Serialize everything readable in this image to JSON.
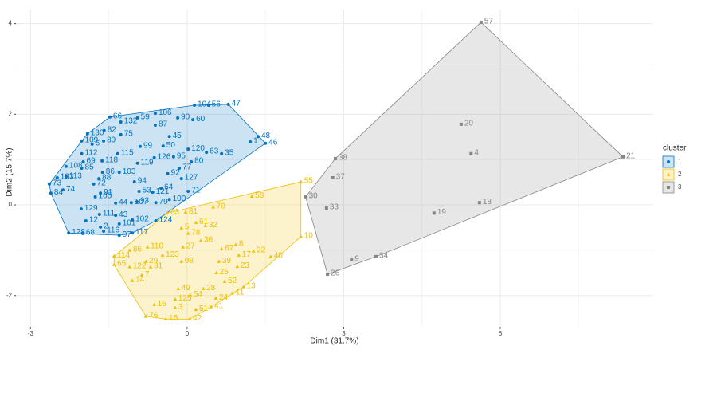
{
  "chart_data": {
    "type": "cluster-scatter",
    "x_label": "Dim1 (31.7%)",
    "y_label": "Dim2 (15.7%)",
    "xlim": [
      -3.28,
      8.93
    ],
    "ylim": [
      -2.69,
      4.31
    ],
    "xticks": [
      -3,
      0,
      3,
      6
    ],
    "yticks": [
      -2,
      0,
      2,
      4
    ],
    "x_minor_ticks": [
      -1.5,
      1.5,
      4.5,
      7.5
    ],
    "y_minor_ticks": [
      -1,
      1,
      3
    ],
    "grid": true,
    "legend_title": "cluster",
    "legend_position": "right",
    "series": [
      {
        "name": "1",
        "color": "#0073C2",
        "shape": "circle",
        "labels": [
          "104",
          "56",
          "47",
          "106",
          "59",
          "66",
          "90",
          "60",
          "87",
          "132",
          "82",
          "130",
          "75",
          "89",
          "6",
          "109",
          "48",
          "1",
          "46",
          "45",
          "99",
          "50",
          "115",
          "120",
          "63",
          "35",
          "112",
          "95",
          "126",
          "119",
          "118",
          "69",
          "108",
          "85",
          "80",
          "77",
          "86",
          "103",
          "113",
          "92",
          "127",
          "88",
          "94",
          "72",
          "133",
          "73",
          "74",
          "84",
          "64",
          "71",
          "91",
          "53",
          "121",
          "105",
          "100",
          "79",
          "44",
          "107",
          "93",
          "129",
          "111",
          "43",
          "12",
          "116",
          "128",
          "68",
          "2",
          "101",
          "102",
          "97",
          "117",
          "124"
        ],
        "x": [
          0.14,
          0.41,
          0.79,
          -0.61,
          -0.95,
          -1.48,
          -0.18,
          0.11,
          -0.61,
          -1.27,
          -1.59,
          -1.91,
          -1.27,
          -1.6,
          -1.82,
          -2.02,
          1.36,
          1.21,
          1.5,
          -0.34,
          -0.9,
          -0.46,
          -1.33,
          0.02,
          0.37,
          0.66,
          -2.02,
          -0.26,
          -0.63,
          -0.95,
          -1.63,
          -1.99,
          -2.32,
          -2.02,
          0.08,
          -0.15,
          -1.62,
          -1.3,
          -2.32,
          -0.37,
          -0.11,
          -1.69,
          -1.01,
          -1.79,
          -2.49,
          -2.64,
          -2.38,
          -2.61,
          -0.5,
          0.02,
          -1.66,
          -0.92,
          -0.66,
          -1.76,
          -0.34,
          -0.6,
          -1.37,
          -1.07,
          -0.96,
          -2.03,
          -1.68,
          -1.37,
          -1.94,
          -1.6,
          -2.27,
          -2.0,
          -1.66,
          -1.3,
          -1.05,
          -1.3,
          -1.05,
          -0.6
        ],
        "values": [
          2.2,
          2.2,
          2.22,
          2.02,
          1.92,
          1.94,
          1.92,
          1.88,
          1.76,
          1.83,
          1.64,
          1.57,
          1.55,
          1.41,
          1.34,
          1.41,
          1.51,
          1.39,
          1.36,
          1.51,
          1.29,
          1.3,
          1.13,
          1.23,
          1.16,
          1.13,
          1.13,
          1.06,
          1.04,
          0.92,
          0.97,
          0.95,
          0.85,
          0.81,
          0.95,
          0.81,
          0.72,
          0.72,
          0.62,
          0.69,
          0.58,
          0.58,
          0.51,
          0.46,
          0.6,
          0.46,
          0.33,
          0.26,
          0.37,
          0.3,
          0.26,
          0.3,
          0.28,
          0.18,
          0.12,
          0.05,
          0.04,
          0.05,
          0.07,
          -0.09,
          -0.21,
          -0.23,
          -0.35,
          -0.58,
          -0.62,
          -0.63,
          -0.49,
          -0.42,
          -0.33,
          -0.67,
          -0.62,
          -0.35
        ]
      },
      {
        "name": "2",
        "color": "#EFC000",
        "shape": "triangle",
        "labels": [
          "55",
          "58",
          "70",
          "81",
          "63",
          "61",
          "32",
          "5",
          "78",
          "36",
          "10",
          "8",
          "67",
          "17",
          "22",
          "40",
          "27",
          "110",
          "86",
          "114",
          "123",
          "29",
          "98",
          "39",
          "23",
          "65",
          "122",
          "31",
          "25",
          "7",
          "14",
          "52",
          "13",
          "49",
          "28",
          "11",
          "54",
          "125",
          "24",
          "3",
          "51",
          "41",
          "16",
          "76",
          "15",
          "42"
        ],
        "x": [
          2.18,
          1.24,
          0.5,
          -0.03,
          -0.38,
          0.17,
          0.35,
          -0.11,
          0.02,
          0.26,
          2.18,
          0.93,
          0.66,
          0.99,
          1.27,
          1.6,
          -0.08,
          -0.76,
          -1.1,
          -1.4,
          -0.47,
          -0.79,
          -0.11,
          0.61,
          0.96,
          -1.4,
          -1.1,
          -0.7,
          0.56,
          -0.87,
          -1.05,
          0.72,
          1.08,
          -0.17,
          0.31,
          0.87,
          0.06,
          -0.23,
          0.55,
          -0.23,
          0.17,
          0.46,
          -0.63,
          -0.79,
          -0.41,
          0.05
        ],
        "values": [
          0.51,
          0.19,
          -0.05,
          -0.16,
          -0.18,
          -0.39,
          -0.46,
          -0.51,
          -0.63,
          -0.79,
          -0.7,
          -0.88,
          -0.97,
          -1.11,
          -1.02,
          -1.14,
          -0.93,
          -0.93,
          -1.0,
          -1.13,
          -1.11,
          -1.25,
          -1.25,
          -1.25,
          -1.36,
          -1.32,
          -1.37,
          -1.37,
          -1.5,
          -1.55,
          -1.67,
          -1.69,
          -1.81,
          -1.85,
          -1.85,
          -1.95,
          -1.99,
          -2.08,
          -2.06,
          -2.27,
          -2.31,
          -2.25,
          -2.2,
          -2.46,
          -2.52,
          -2.52
        ]
      },
      {
        "name": "3",
        "color": "#868686",
        "shape": "square",
        "labels": [
          "57",
          "20",
          "38",
          "37",
          "4",
          "21",
          "30",
          "33",
          "19",
          "18",
          "9",
          "34",
          "26"
        ],
        "x": [
          5.63,
          5.25,
          2.84,
          2.79,
          5.44,
          8.35,
          2.27,
          2.67,
          4.73,
          5.6,
          3.15,
          3.62,
          2.69
        ],
        "values": [
          4.03,
          1.78,
          1.02,
          0.6,
          1.13,
          1.06,
          0.18,
          -0.07,
          -0.18,
          0.05,
          -1.21,
          -1.14,
          -1.53
        ]
      }
    ]
  }
}
